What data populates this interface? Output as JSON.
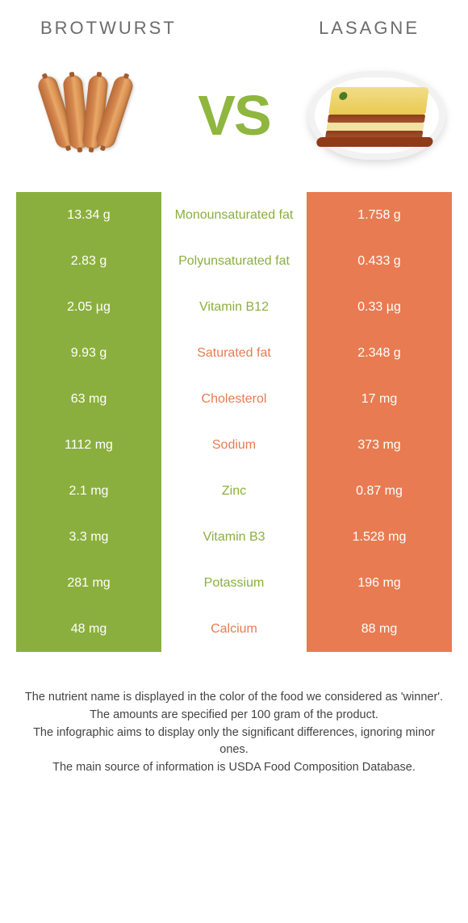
{
  "header": {
    "left": "BROTWURST",
    "right": "LASAGNE",
    "vs": "VS"
  },
  "colors": {
    "green": "#8baf3e",
    "orange": "#e87b52",
    "text": "#555555",
    "white": "#ffffff"
  },
  "rows": [
    {
      "left": "13.34 g",
      "label": "Monounsaturated fat",
      "right": "1.758 g",
      "winner": "left"
    },
    {
      "left": "2.83 g",
      "label": "Polyunsaturated fat",
      "right": "0.433 g",
      "winner": "left"
    },
    {
      "left": "2.05 µg",
      "label": "Vitamin B12",
      "right": "0.33 µg",
      "winner": "left"
    },
    {
      "left": "9.93 g",
      "label": "Saturated fat",
      "right": "2.348 g",
      "winner": "right"
    },
    {
      "left": "63 mg",
      "label": "Cholesterol",
      "right": "17 mg",
      "winner": "right"
    },
    {
      "left": "1112 mg",
      "label": "Sodium",
      "right": "373 mg",
      "winner": "right"
    },
    {
      "left": "2.1 mg",
      "label": "Zinc",
      "right": "0.87 mg",
      "winner": "left"
    },
    {
      "left": "3.3 mg",
      "label": "Vitamin B3",
      "right": "1.528 mg",
      "winner": "left"
    },
    {
      "left": "281 mg",
      "label": "Potassium",
      "right": "196 mg",
      "winner": "left"
    },
    {
      "left": "48 mg",
      "label": "Calcium",
      "right": "88 mg",
      "winner": "right"
    }
  ],
  "footer": {
    "line1": "The nutrient name is displayed in the color of the food we considered as 'winner'.",
    "line2": "The amounts are specified per 100 gram of the product.",
    "line3": "The infographic aims to display only the significant differences, ignoring minor ones.",
    "line4": "The main source of information is USDA Food Composition Database."
  }
}
